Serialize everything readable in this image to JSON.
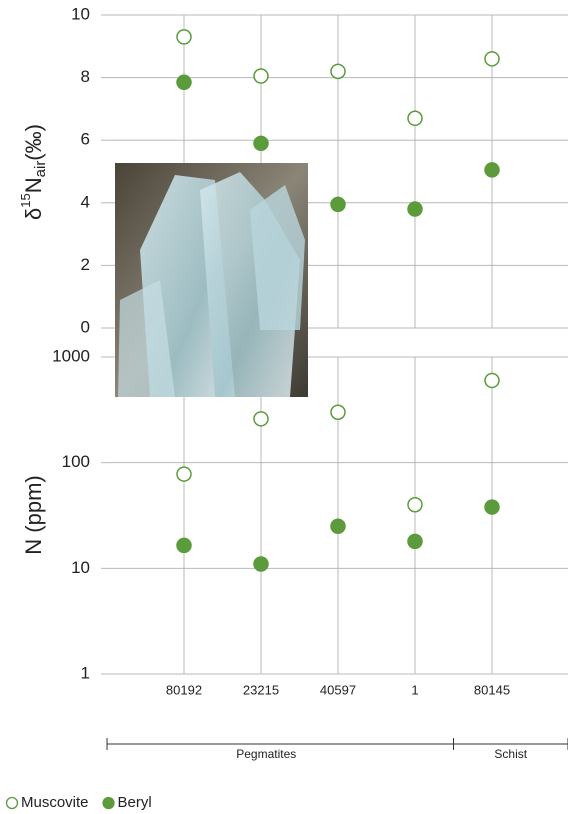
{
  "chart_data": {
    "type": "dot",
    "categories": [
      "80192",
      "23215",
      "40597",
      "1",
      "80145"
    ],
    "groups": [
      {
        "label": "Pegmatites",
        "span": 4
      },
      {
        "label": "Schist",
        "span": 1
      }
    ],
    "panels": [
      {
        "y_label": [
          "δ",
          "15",
          "N",
          "air",
          "(‰)"
        ],
        "ylim": [
          0,
          10
        ],
        "yticks": [
          0,
          2,
          4,
          6,
          8,
          10
        ],
        "log": false,
        "grid": true,
        "series": [
          {
            "name": "Muscovite",
            "color": "#5b9b3c",
            "marker": "open",
            "values": [
              9.3,
              8.05,
              8.2,
              6.7,
              8.6
            ]
          },
          {
            "name": "Beryl",
            "color": "#5b9b3c",
            "marker": "filled",
            "values": [
              7.85,
              5.9,
              3.95,
              3.8,
              5.05
            ]
          }
        ]
      },
      {
        "y_label": "N (ppm)",
        "ylim": [
          1,
          1000
        ],
        "yticks": [
          1,
          10,
          100,
          1000
        ],
        "log": true,
        "grid": true,
        "series": [
          {
            "color": "#5b9b3c",
            "marker": "open",
            "values": [
              78,
              260,
              300,
              40,
              600
            ]
          },
          {
            "color": "#5b9b3c",
            "marker": "filled",
            "values": [
              16.5,
              11,
              25,
              18,
              38
            ]
          }
        ]
      }
    ]
  }
}
